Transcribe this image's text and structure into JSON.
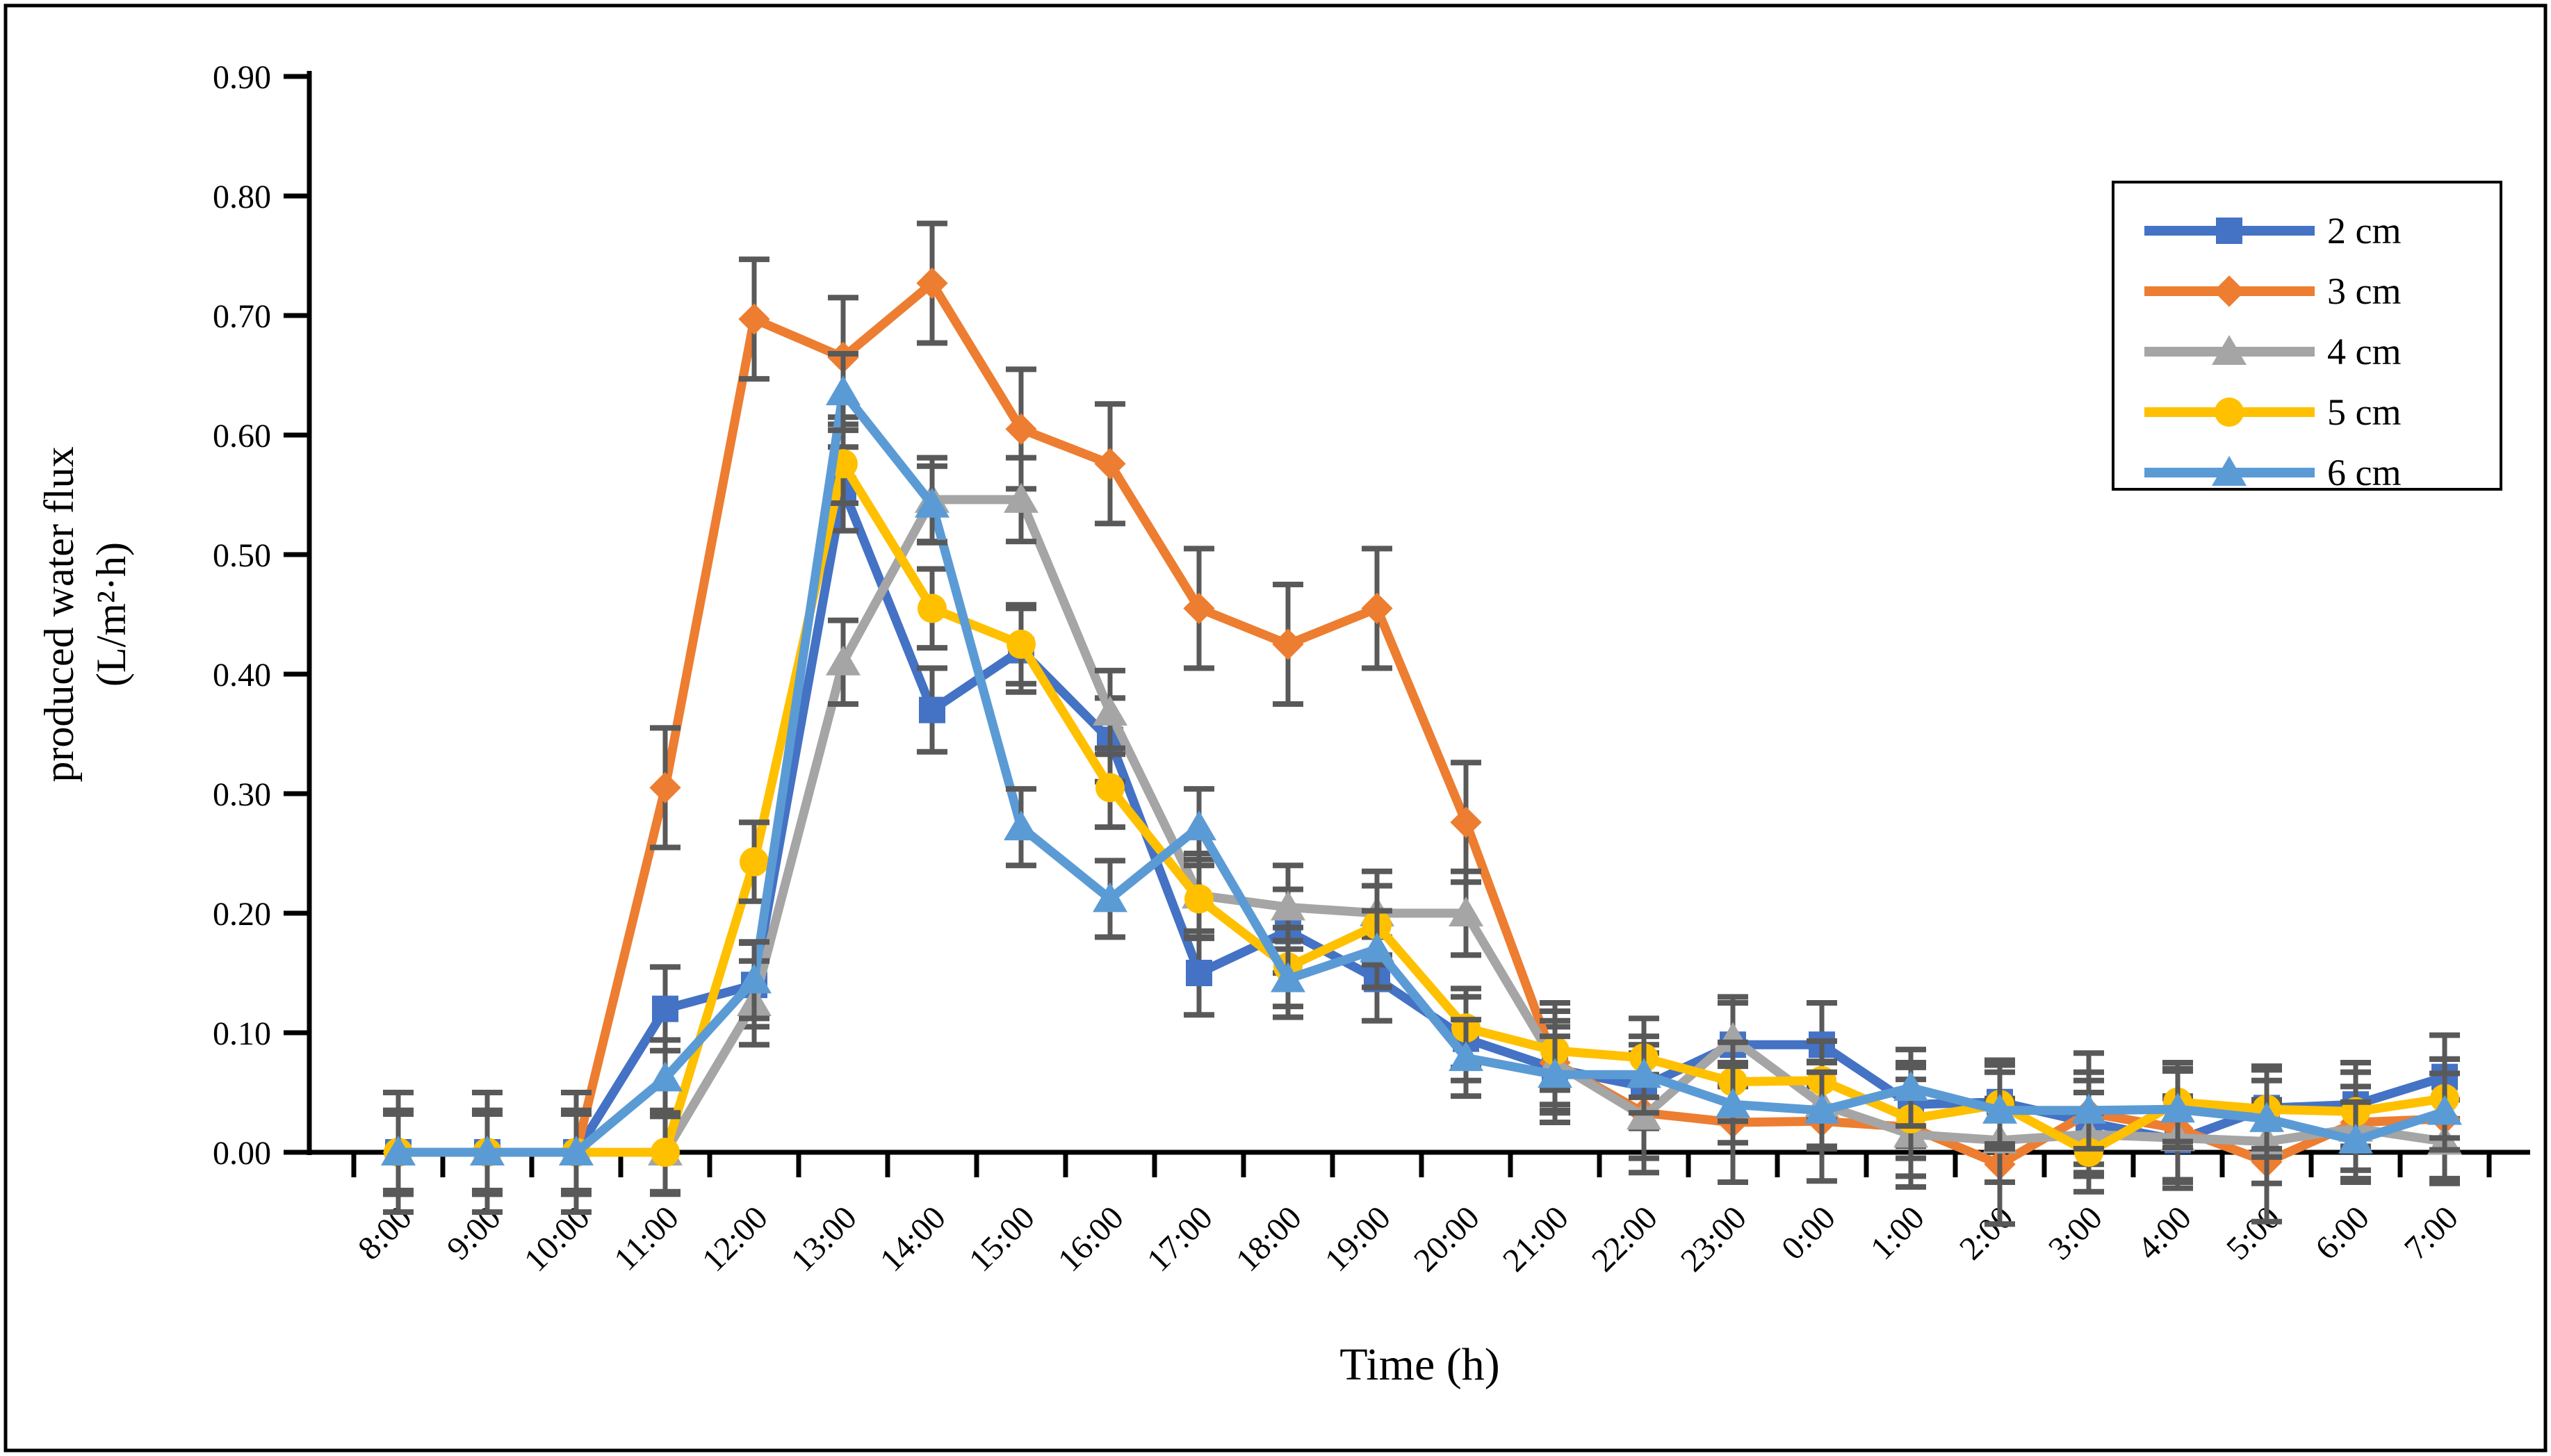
{
  "figure": {
    "background": "#ffffff",
    "border_color": "#000000"
  },
  "chart_data": {
    "type": "line",
    "title": "",
    "xlabel": "Time (h)",
    "ylabel_line1": "produced water flux",
    "ylabel_line2": "(L/m²·h)",
    "grid": "off",
    "legend_position": "top-right",
    "ylim": [
      0.0,
      0.9
    ],
    "ytick_step": 0.1,
    "ytick_labels": [
      "0.00",
      "0.10",
      "0.20",
      "0.30",
      "0.40",
      "0.50",
      "0.60",
      "0.70",
      "0.80",
      "0.90"
    ],
    "x_categories": [
      "8:00",
      "9:00",
      "10:00",
      "11:00",
      "12:00",
      "13:00",
      "14:00",
      "15:00",
      "16:00",
      "17:00",
      "18:00",
      "19:00",
      "20:00",
      "21:00",
      "22:00",
      "23:00",
      "0:00",
      "1:00",
      "2:00",
      "3:00",
      "4:00",
      "5:00",
      "6:00",
      "7:00"
    ],
    "error_bar_color": "#595959",
    "series": [
      {
        "name": "2 cm",
        "color": "#4472C4",
        "marker": "square",
        "error": 0.035,
        "values": [
          0,
          0,
          0,
          0.12,
          0.14,
          0.555,
          0.37,
          0.42,
          0.345,
          0.15,
          0.185,
          0.145,
          0.095,
          0.07,
          0.055,
          0.09,
          0.09,
          0.04,
          0.042,
          0.025,
          0.01,
          0.037,
          0.04,
          0.063
        ]
      },
      {
        "name": "3 cm",
        "color": "#ED7D31",
        "marker": "diamond",
        "error": 0.05,
        "values": [
          0,
          0,
          0,
          0.305,
          0.697,
          0.665,
          0.727,
          0.605,
          0.576,
          0.455,
          0.425,
          0.455,
          0.276,
          0.075,
          0.033,
          0.025,
          0.026,
          0.021,
          -0.01,
          0.033,
          0.02,
          -0.008,
          0.025,
          0.028
        ]
      },
      {
        "name": "4 cm",
        "color": "#A5A5A5",
        "marker": "triangle",
        "error": 0.035,
        "values": [
          0,
          0,
          0,
          0,
          0.125,
          0.41,
          0.546,
          0.546,
          0.368,
          0.215,
          0.205,
          0.2,
          0.2,
          0.075,
          0.03,
          0.095,
          0.04,
          0.015,
          0.01,
          0.015,
          0.012,
          0.009,
          0.02,
          0.009
        ]
      },
      {
        "name": "5 cm",
        "color": "#FFC000",
        "marker": "circle",
        "error": 0.033,
        "values": [
          0,
          0,
          0,
          0,
          0.243,
          0.576,
          0.455,
          0.425,
          0.305,
          0.212,
          0.155,
          0.19,
          0.104,
          0.085,
          0.079,
          0.059,
          0.06,
          0.028,
          0.04,
          0,
          0.042,
          0.036,
          0.034,
          0.045
        ]
      },
      {
        "name": "6 cm",
        "color": "#5B9BD5",
        "marker": "triangle",
        "error": 0.032,
        "values": [
          0,
          0,
          0,
          0.062,
          0.144,
          0.636,
          0.542,
          0.272,
          0.212,
          0.272,
          0.145,
          0.17,
          0.079,
          0.065,
          0.065,
          0.04,
          0.035,
          0.054,
          0.035,
          0.035,
          0.036,
          0.028,
          0.01,
          0.034
        ]
      }
    ]
  }
}
